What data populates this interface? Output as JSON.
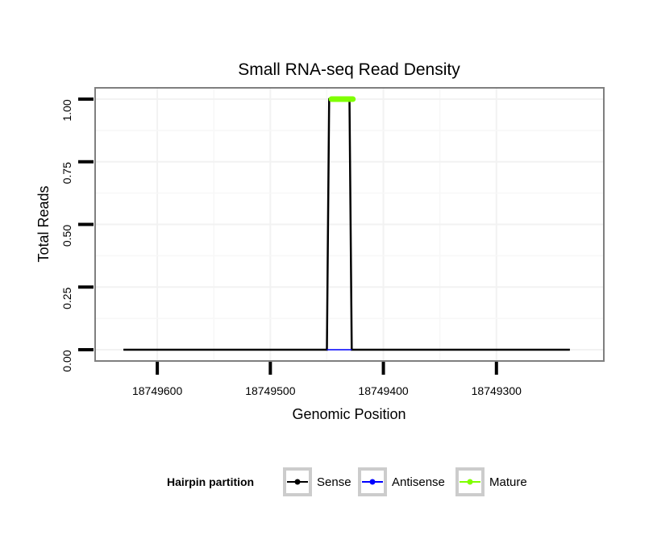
{
  "chart_data": {
    "type": "line",
    "title": "Small RNA-seq Read Density",
    "xlabel": "Genomic Position",
    "ylabel": "Total Reads",
    "xlim": [
      18749655,
      18749205
    ],
    "ylim": [
      -0.045,
      1.045
    ],
    "x_reversed": true,
    "x_ticks": [
      18749600,
      18749500,
      18749400,
      18749300
    ],
    "x_tick_labels": [
      "18749600",
      "18749500",
      "18749400",
      "18749300"
    ],
    "y_ticks": [
      0,
      0.25,
      0.5,
      0.75,
      1
    ],
    "y_tick_labels": [
      "0.00",
      "0.25",
      "0.50",
      "0.75",
      "1.00"
    ],
    "grid": true,
    "legend": {
      "title": "Hairpin partition",
      "position": "bottom",
      "entries": [
        "Sense",
        "Antisense",
        "Mature"
      ]
    },
    "series": [
      {
        "name": "Sense",
        "color": "#000000",
        "points": [
          [
            18749630,
            0
          ],
          [
            18749450,
            0
          ],
          [
            18749448,
            1
          ],
          [
            18749430,
            1
          ],
          [
            18749428,
            0
          ],
          [
            18749235,
            0
          ]
        ]
      },
      {
        "name": "Antisense",
        "color": "#0000ff",
        "points": [
          [
            18749450,
            0
          ],
          [
            18749428,
            0
          ]
        ]
      },
      {
        "name": "Mature",
        "color": "#7fff00",
        "points": [
          [
            18749446,
            1
          ],
          [
            18749427,
            1
          ]
        ]
      }
    ]
  }
}
